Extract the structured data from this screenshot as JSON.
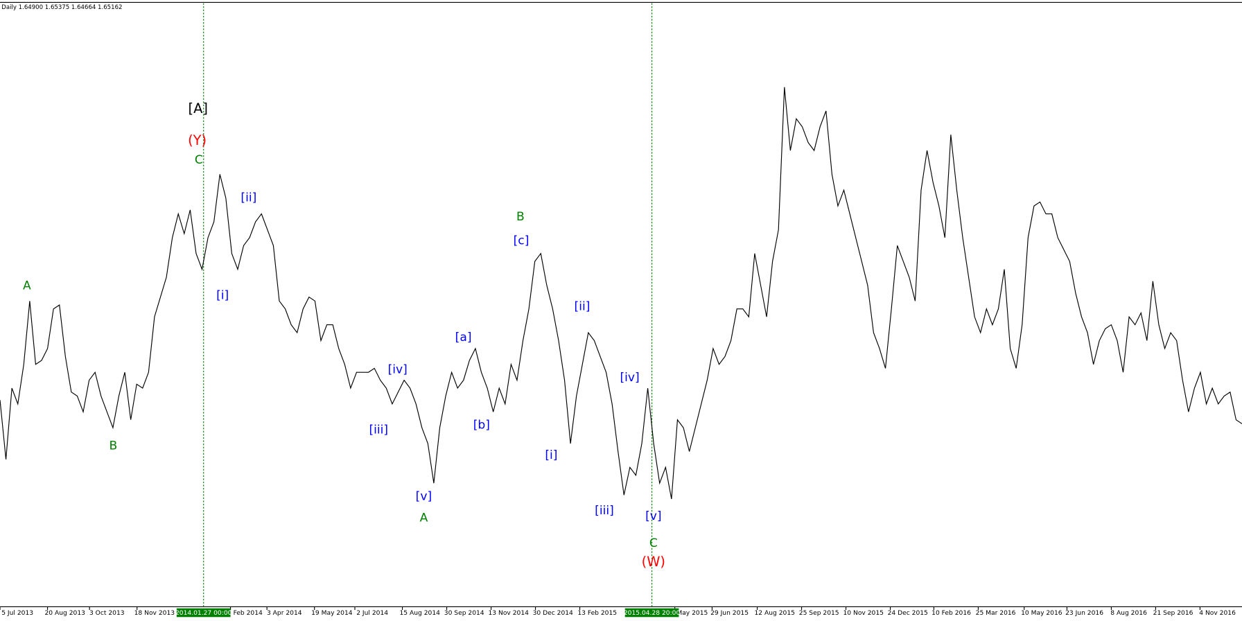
{
  "chart_data": {
    "type": "line",
    "header": "Daily  1.64900 1.65375 1.64664 1.65162",
    "color": "#000000",
    "ylim": [
      1.42,
      2.19
    ],
    "values": [
      1.685,
      1.61,
      1.7,
      1.68,
      1.73,
      1.81,
      1.73,
      1.735,
      1.75,
      1.8,
      1.805,
      1.74,
      1.695,
      1.69,
      1.67,
      1.71,
      1.72,
      1.69,
      1.67,
      1.65,
      1.69,
      1.72,
      1.66,
      1.705,
      1.7,
      1.72,
      1.79,
      1.815,
      1.84,
      1.89,
      1.92,
      1.895,
      1.925,
      1.87,
      1.85,
      1.89,
      1.91,
      1.97,
      1.94,
      1.87,
      1.85,
      1.88,
      1.89,
      1.91,
      1.92,
      1.9,
      1.88,
      1.81,
      1.8,
      1.78,
      1.77,
      1.8,
      1.815,
      1.81,
      1.76,
      1.78,
      1.78,
      1.75,
      1.73,
      1.7,
      1.72,
      1.72,
      1.72,
      1.725,
      1.71,
      1.7,
      1.68,
      1.695,
      1.71,
      1.7,
      1.68,
      1.65,
      1.63,
      1.58,
      1.65,
      1.69,
      1.72,
      1.7,
      1.71,
      1.735,
      1.75,
      1.72,
      1.7,
      1.67,
      1.7,
      1.68,
      1.73,
      1.71,
      1.76,
      1.8,
      1.86,
      1.87,
      1.83,
      1.8,
      1.76,
      1.71,
      1.63,
      1.69,
      1.73,
      1.77,
      1.76,
      1.74,
      1.72,
      1.68,
      1.62,
      1.565,
      1.6,
      1.59,
      1.63,
      1.7,
      1.63,
      1.58,
      1.6,
      1.56,
      1.66,
      1.65,
      1.62,
      1.65,
      1.68,
      1.71,
      1.75,
      1.73,
      1.74,
      1.76,
      1.8,
      1.8,
      1.79,
      1.87,
      1.83,
      1.79,
      1.86,
      1.9,
      2.08,
      2.0,
      2.04,
      2.03,
      2.01,
      2.0,
      2.03,
      2.05,
      1.97,
      1.93,
      1.95,
      1.92,
      1.89,
      1.86,
      1.83,
      1.77,
      1.75,
      1.725,
      1.8,
      1.88,
      1.86,
      1.84,
      1.81,
      1.95,
      2.0,
      1.96,
      1.93,
      1.89,
      2.02,
      1.95,
      1.89,
      1.84,
      1.79,
      1.77,
      1.8,
      1.78,
      1.8,
      1.85,
      1.75,
      1.725,
      1.78,
      1.89,
      1.93,
      1.935,
      1.92,
      1.92,
      1.89,
      1.875,
      1.86,
      1.82,
      1.79,
      1.77,
      1.73,
      1.76,
      1.775,
      1.78,
      1.76,
      1.72,
      1.79,
      1.78,
      1.795,
      1.76,
      1.835,
      1.78,
      1.75,
      1.77,
      1.76,
      1.71,
      1.67,
      1.7,
      1.72,
      1.68,
      1.7,
      1.68,
      1.69,
      1.695,
      1.66,
      1.655
    ],
    "xtick_labels": [
      "5 Jul 2013",
      "20 Aug 2013",
      "3 Oct 2013",
      "18 Nov 2013",
      "Feb 2014",
      "3 Apr 2014",
      "19 May 2014",
      "2 Jul 2014",
      "15 Aug 2014",
      "30 Sep 2014",
      "13 Nov 2014",
      "30 Dec 2014",
      "13 Feb 2015",
      "May 2015",
      "29 Jun 2015",
      "12 Aug 2015",
      "25 Sep 2015",
      "10 Nov 2015",
      "24 Dec 2015",
      "10 Feb 2016",
      "25 Mar 2016",
      "10 May 2016",
      "23 Jun 2016",
      "8 Aug 2016",
      "21 Sep 2016",
      "4 Nov 2016"
    ],
    "cursor_labels": [
      "2014.01.27 00:00",
      "2015.04.28 20:00"
    ],
    "cursor_color": "#008000",
    "annotations": [
      {
        "text": "[A]",
        "color": "#000000"
      },
      {
        "text": "(Y)",
        "color": "#ff0000"
      },
      {
        "text": "C",
        "color": "#008000"
      },
      {
        "text": "[ii]",
        "color": "#0000ff"
      },
      {
        "text": "[i]",
        "color": "#0000ff"
      },
      {
        "text": "A",
        "color": "#008000"
      },
      {
        "text": "B",
        "color": "#008000"
      },
      {
        "text": "[iii]",
        "color": "#0000ff"
      },
      {
        "text": "[iv]",
        "color": "#0000ff"
      },
      {
        "text": "[v]",
        "color": "#0000ff"
      },
      {
        "text": "A",
        "color": "#008000"
      },
      {
        "text": "[a]",
        "color": "#0000ff"
      },
      {
        "text": "[b]",
        "color": "#0000ff"
      },
      {
        "text": "[c]",
        "color": "#0000ff"
      },
      {
        "text": "B",
        "color": "#008000"
      },
      {
        "text": "[i]",
        "color": "#0000ff"
      },
      {
        "text": "[ii]",
        "color": "#0000ff"
      },
      {
        "text": "[iii]",
        "color": "#0000ff"
      },
      {
        "text": "[iv]",
        "color": "#0000ff"
      },
      {
        "text": "[v]",
        "color": "#0000ff"
      },
      {
        "text": "C",
        "color": "#008000"
      },
      {
        "text": "(W)",
        "color": "#ff0000"
      }
    ]
  }
}
